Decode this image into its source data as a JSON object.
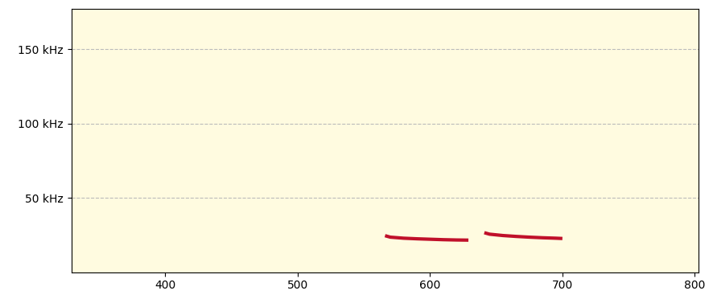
{
  "chart_data": {
    "type": "line",
    "xlim": [
      329,
      803
    ],
    "xticks": [
      400,
      500,
      600,
      700,
      800
    ],
    "ylim": [
      0,
      177
    ],
    "yticks": [
      {
        "value": 50,
        "label": "50 kHz"
      },
      {
        "value": 100,
        "label": "100 kHz"
      },
      {
        "value": 150,
        "label": "150 kHz"
      }
    ],
    "grid": true,
    "series": [
      {
        "color": "#c0102a",
        "x": [
          566,
          570,
          580,
          590,
          600,
          610,
          620,
          629
        ],
        "values": [
          24.5,
          23.5,
          22.8,
          22.4,
          22.1,
          21.8,
          21.6,
          21.5
        ]
      },
      {
        "color": "#c0102a",
        "x": [
          641,
          645,
          655,
          665,
          675,
          685,
          695,
          700
        ],
        "values": [
          26.5,
          25.5,
          24.6,
          24.0,
          23.5,
          23.1,
          22.8,
          22.6
        ]
      }
    ]
  }
}
